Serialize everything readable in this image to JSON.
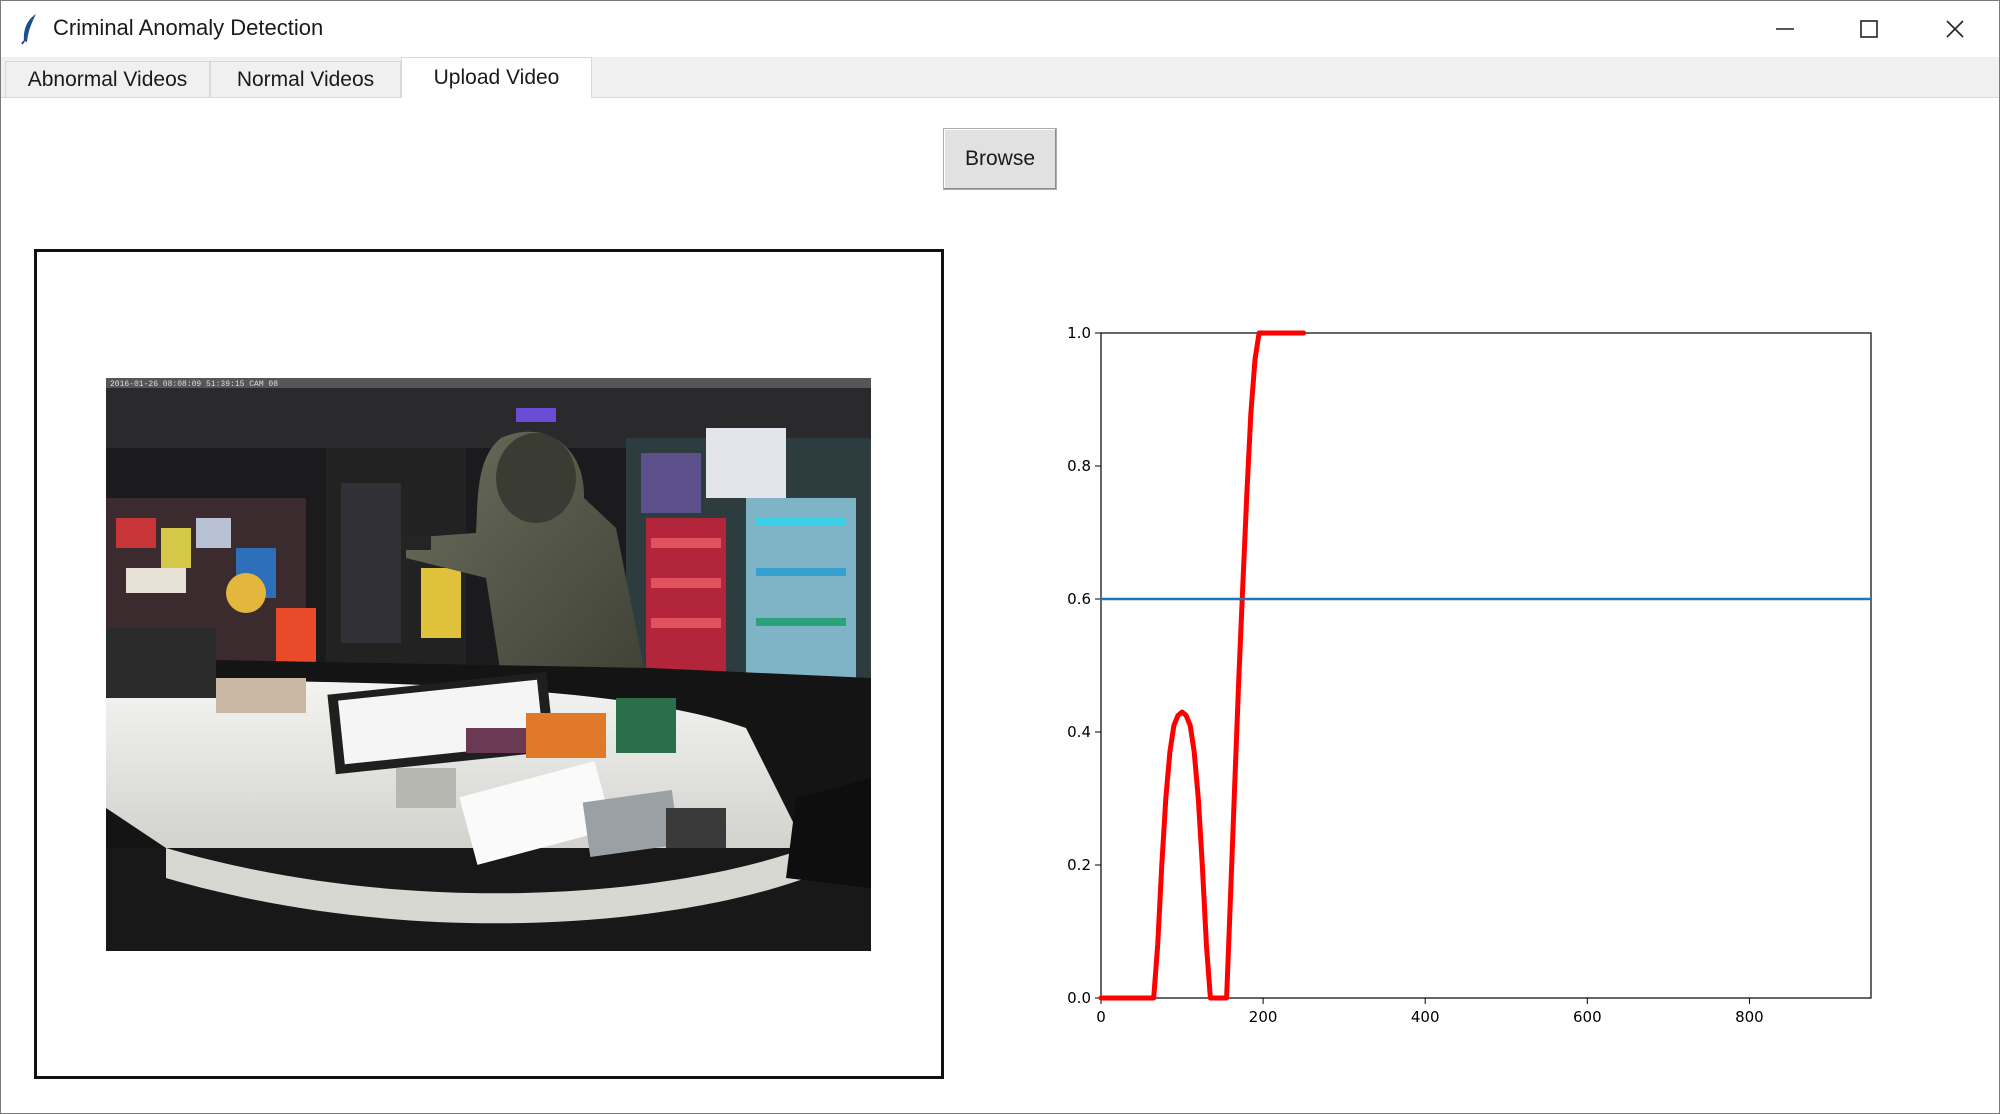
{
  "window": {
    "title": "Criminal Anomaly Detection",
    "controls": [
      "minimize",
      "maximize",
      "close"
    ]
  },
  "tabs": [
    {
      "label": "Abnormal Videos",
      "active": false
    },
    {
      "label": "Normal Videos",
      "active": false
    },
    {
      "label": "Upload Video",
      "active": true
    }
  ],
  "browse": {
    "label": "Browse"
  },
  "video": {
    "overlay_text": "2016-01-26 08:08:09 51:39:15 CAM 08",
    "scene_icon": "cctv-frame-robbery-at-store-counter"
  },
  "colors": {
    "curve": "#ff0000",
    "threshold": "#1f77b4",
    "frame_border": "#111111"
  },
  "chart_data": {
    "type": "line",
    "title": "",
    "xlabel": "",
    "ylabel": "",
    "xlim": [
      0,
      950
    ],
    "ylim": [
      0,
      1.0
    ],
    "xticks": [
      0,
      200,
      400,
      600,
      800
    ],
    "yticks": [
      0.0,
      0.2,
      0.4,
      0.6,
      0.8,
      1.0
    ],
    "xtick_labels": [
      "0",
      "200",
      "400",
      "600",
      "800"
    ],
    "ytick_labels": [
      "0.0",
      "0.2",
      "0.4",
      "0.6",
      "0.8",
      "1.0"
    ],
    "grid": false,
    "series": [
      {
        "role": "anomaly score",
        "color": "#ff0000",
        "x": [
          0,
          20,
          40,
          60,
          65,
          70,
          75,
          80,
          85,
          90,
          95,
          100,
          105,
          110,
          115,
          120,
          125,
          130,
          135,
          140,
          145,
          150,
          155,
          160,
          165,
          170,
          175,
          180,
          185,
          190,
          195,
          200,
          210,
          220,
          230,
          240,
          250
        ],
        "y": [
          0,
          0,
          0,
          0,
          0.0,
          0.08,
          0.2,
          0.3,
          0.37,
          0.41,
          0.425,
          0.43,
          0.425,
          0.41,
          0.37,
          0.3,
          0.2,
          0.08,
          0.0,
          0.0,
          0.0,
          0.0,
          0.0,
          0.16,
          0.32,
          0.48,
          0.62,
          0.76,
          0.88,
          0.96,
          1.0,
          1.0,
          1.0,
          1.0,
          1.0,
          1.0,
          1.0
        ]
      },
      {
        "role": "threshold",
        "color": "#1f77b4",
        "x": [
          0,
          950
        ],
        "y": [
          0.6,
          0.6
        ]
      }
    ]
  }
}
